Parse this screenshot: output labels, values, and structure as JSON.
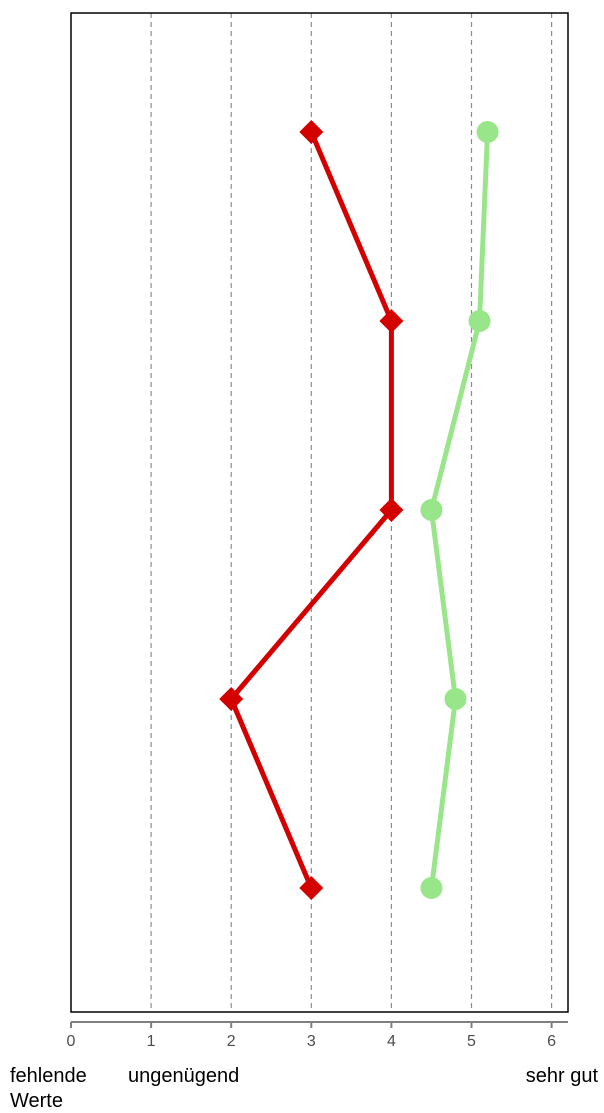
{
  "chart_data": {
    "type": "line",
    "orientation": "horizontal-values",
    "xlim": [
      0,
      6.2
    ],
    "ticks": [
      0,
      1,
      2,
      3,
      4,
      5,
      6
    ],
    "tick_labels": [
      "0",
      "1",
      "2",
      "3",
      "4",
      "5",
      "6"
    ],
    "grid": "vertical-dashed",
    "axis_category_labels": [
      {
        "at": 0,
        "text": "fehlende\nWerte"
      },
      {
        "at": 1,
        "text": "ungenügend"
      },
      {
        "at": 6,
        "text": "sehr gut"
      }
    ],
    "series": [
      {
        "color": "#d40000",
        "marker": "diamond",
        "values": [
          3,
          4,
          4,
          2,
          3
        ]
      },
      {
        "color": "#99e68a",
        "marker": "circle",
        "values": [
          5.2,
          5.1,
          4.5,
          4.8,
          4.5
        ]
      }
    ]
  }
}
